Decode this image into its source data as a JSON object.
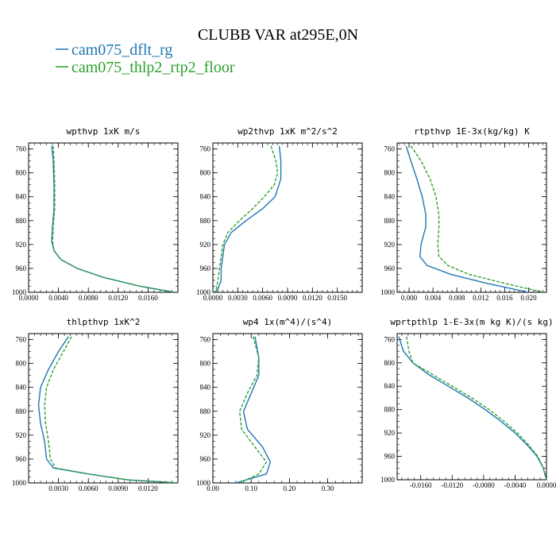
{
  "figure": {
    "title": "CLUBB VAR at295E,0N",
    "legend": [
      {
        "label": "cam075_dflt_rg",
        "color": "#1f77b4"
      },
      {
        "label": "cam075_thlp2_rtp2_floor",
        "color": "#2ca02c"
      }
    ]
  },
  "chart_data": [
    {
      "type": "line",
      "title": "wpthvp  1xK m/s",
      "xlim": [
        0,
        0.02
      ],
      "ylim": [
        1000,
        750
      ],
      "xticks": [
        "0.0000",
        "0.0040",
        "0.0080",
        "0.0120",
        "0.0160"
      ],
      "xtick_values": [
        0,
        0.004,
        0.008,
        0.012,
        0.016
      ],
      "yticks": [
        760,
        800,
        840,
        880,
        920,
        960,
        1000
      ],
      "series": [
        {
          "name": "cam075_dflt_rg",
          "color": "#1f77b4",
          "dash": "",
          "y": [
            755,
            780,
            820,
            860,
            890,
            915,
            930,
            945,
            960,
            975,
            990,
            1000
          ],
          "x": [
            0.0031,
            0.0033,
            0.0034,
            0.0034,
            0.0032,
            0.0031,
            0.0034,
            0.0043,
            0.0065,
            0.01,
            0.015,
            0.0195
          ]
        },
        {
          "name": "cam075_thlp2_rtp2_floor",
          "color": "#2ca02c",
          "dash": "4,2",
          "y": [
            755,
            780,
            820,
            860,
            890,
            915,
            930,
            945,
            960,
            975,
            990,
            1000
          ],
          "x": [
            0.0033,
            0.0034,
            0.0035,
            0.0035,
            0.0033,
            0.0032,
            0.0034,
            0.0043,
            0.0065,
            0.01,
            0.015,
            0.0195
          ]
        }
      ]
    },
    {
      "type": "line",
      "title": "wp2thvp  1xK m^2/s^2",
      "xlim": [
        0,
        0.018
      ],
      "ylim": [
        1000,
        750
      ],
      "xticks": [
        "0.0000",
        "0.0030",
        "0.0060",
        "0.0090",
        "0.0120",
        "0.0150"
      ],
      "xtick_values": [
        0,
        0.003,
        0.006,
        0.009,
        0.012,
        0.015
      ],
      "yticks": [
        760,
        800,
        840,
        880,
        920,
        960,
        1000
      ],
      "series": [
        {
          "name": "cam075_dflt_rg",
          "color": "#1f77b4",
          "dash": "",
          "y": [
            755,
            780,
            810,
            840,
            860,
            880,
            900,
            920,
            940,
            960,
            980,
            995,
            1000
          ],
          "x": [
            0.008,
            0.0082,
            0.0082,
            0.0075,
            0.006,
            0.004,
            0.0022,
            0.0014,
            0.0012,
            0.001,
            0.001,
            0.0006,
            0.0003
          ]
        },
        {
          "name": "cam075_thlp2_rtp2_floor",
          "color": "#2ca02c",
          "dash": "4,2",
          "y": [
            755,
            780,
            800,
            820,
            840,
            860,
            880,
            900,
            920,
            940,
            960,
            980,
            995,
            1000
          ],
          "x": [
            0.007,
            0.0076,
            0.0078,
            0.0074,
            0.0062,
            0.0048,
            0.0032,
            0.0018,
            0.0012,
            0.001,
            0.0008,
            0.0006,
            0.0004,
            0.0002
          ]
        }
      ]
    },
    {
      "type": "line",
      "title": "rtpthvp  1E-3x(kg/kg) K",
      "xlim": [
        -0.002,
        0.023
      ],
      "ylim": [
        1000,
        750
      ],
      "xticks": [
        "0.000",
        "0.004",
        "0.008",
        "0.012",
        "0.016",
        "0.020"
      ],
      "xtick_values": [
        0,
        0.004,
        0.008,
        0.012,
        0.016,
        0.02
      ],
      "yticks": [
        760,
        800,
        840,
        880,
        920,
        960,
        1000
      ],
      "series": [
        {
          "name": "cam075_dflt_rg",
          "color": "#1f77b4",
          "dash": "",
          "y": [
            755,
            780,
            810,
            840,
            870,
            890,
            920,
            940,
            955,
            970,
            985,
            1000
          ],
          "x": [
            -0.0005,
            0.0003,
            0.0013,
            0.0022,
            0.0028,
            0.0028,
            0.002,
            0.0018,
            0.003,
            0.007,
            0.013,
            0.02
          ]
        },
        {
          "name": "cam075_thlp2_rtp2_floor",
          "color": "#2ca02c",
          "dash": "4,2",
          "y": [
            755,
            780,
            810,
            840,
            870,
            890,
            920,
            940,
            955,
            970,
            985,
            1000
          ],
          "x": [
            0.0003,
            0.002,
            0.0035,
            0.0045,
            0.005,
            0.005,
            0.0048,
            0.005,
            0.0065,
            0.01,
            0.016,
            0.0225
          ]
        }
      ]
    },
    {
      "type": "line",
      "title": "thlpthvp  1xK^2",
      "xlim": [
        0,
        0.015
      ],
      "ylim": [
        1000,
        750
      ],
      "xticks": [
        "0.0030",
        "0.0060",
        "0.0090",
        "0.0120"
      ],
      "xtick_values": [
        0.003,
        0.006,
        0.009,
        0.012
      ],
      "yticks": [
        760,
        800,
        840,
        880,
        920,
        960,
        1000
      ],
      "series": [
        {
          "name": "cam075_dflt_rg",
          "color": "#1f77b4",
          "dash": "",
          "y": [
            755,
            780,
            810,
            840,
            870,
            900,
            930,
            960,
            975,
            985,
            995,
            1000
          ],
          "x": [
            0.004,
            0.003,
            0.002,
            0.0012,
            0.001,
            0.0012,
            0.0016,
            0.0018,
            0.0025,
            0.006,
            0.01,
            0.015
          ]
        },
        {
          "name": "cam075_thlp2_rtp2_floor",
          "color": "#2ca02c",
          "dash": "4,2",
          "y": [
            755,
            780,
            810,
            840,
            870,
            900,
            930,
            960,
            975,
            985,
            995,
            1000
          ],
          "x": [
            0.0043,
            0.0035,
            0.0025,
            0.0018,
            0.0016,
            0.0017,
            0.002,
            0.0022,
            0.0027,
            0.006,
            0.01,
            0.015
          ]
        }
      ]
    },
    {
      "type": "line",
      "title": "wp4  1x(m^4)/(s^4)",
      "xlim": [
        0,
        0.39
      ],
      "ylim": [
        1000,
        750
      ],
      "xticks": [
        "0.00",
        "0.10",
        "0.20",
        "0.30"
      ],
      "xtick_values": [
        0,
        0.1,
        0.2,
        0.3
      ],
      "yticks": [
        760,
        800,
        840,
        880,
        920,
        960,
        1000
      ],
      "series": [
        {
          "name": "cam075_dflt_rg",
          "color": "#1f77b4",
          "dash": "",
          "y": [
            755,
            790,
            820,
            850,
            880,
            910,
            940,
            965,
            985,
            1000
          ],
          "x": [
            0.11,
            0.12,
            0.12,
            0.1,
            0.08,
            0.09,
            0.13,
            0.15,
            0.14,
            0.06
          ]
        },
        {
          "name": "cam075_thlp2_rtp2_floor",
          "color": "#2ca02c",
          "dash": "4,2",
          "y": [
            755,
            790,
            820,
            850,
            880,
            910,
            940,
            965,
            985,
            1000
          ],
          "x": [
            0.105,
            0.12,
            0.115,
            0.09,
            0.07,
            0.075,
            0.11,
            0.14,
            0.12,
            0.07
          ]
        }
      ]
    },
    {
      "type": "line",
      "title": "wprtpthlp  1-E-3x(m kg K)/(s kg)",
      "xlim": [
        -0.019,
        0
      ],
      "ylim": [
        1000,
        750
      ],
      "xticks": [
        "-0.0160",
        "-0.0120",
        "-0.0080",
        "-0.0040",
        "0.0000"
      ],
      "xtick_values": [
        -0.016,
        -0.012,
        -0.008,
        -0.004,
        0
      ],
      "yticks": [
        760,
        800,
        840,
        880,
        920,
        960,
        1000
      ],
      "series": [
        {
          "name": "cam075_dflt_rg",
          "color": "#1f77b4",
          "dash": "",
          "y": [
            755,
            780,
            800,
            820,
            840,
            860,
            880,
            900,
            920,
            940,
            960,
            980,
            1000
          ],
          "x": [
            -0.0188,
            -0.0182,
            -0.017,
            -0.015,
            -0.0125,
            -0.01,
            -0.0078,
            -0.0058,
            -0.004,
            -0.0025,
            -0.0012,
            -0.0004,
            0
          ]
        },
        {
          "name": "cam075_thlp2_rtp2_floor",
          "color": "#2ca02c",
          "dash": "4,2",
          "y": [
            755,
            780,
            800,
            820,
            840,
            860,
            880,
            900,
            920,
            940,
            960,
            980,
            1000
          ],
          "x": [
            -0.0178,
            -0.0175,
            -0.017,
            -0.0145,
            -0.012,
            -0.0095,
            -0.0073,
            -0.0054,
            -0.0037,
            -0.0023,
            -0.0011,
            -0.0004,
            0
          ]
        }
      ]
    }
  ]
}
